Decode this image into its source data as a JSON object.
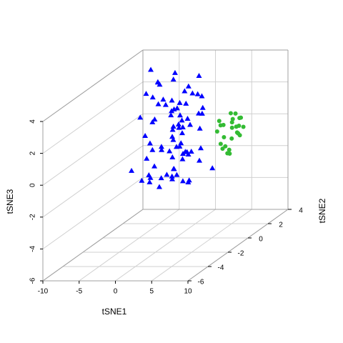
{
  "chart_data": {
    "type": "scatter3d",
    "x_label": "tSNE1",
    "y_label": "tSNE2",
    "z_label": "tSNE3",
    "xlim": [
      -10,
      10
    ],
    "ylim": [
      -6,
      4
    ],
    "zlim": [
      -6,
      4
    ],
    "xticks": [
      -10,
      -5,
      0,
      5,
      10
    ],
    "yticks": [
      -6,
      -4,
      -2,
      0,
      2,
      4
    ],
    "zticks": [
      -6,
      -4,
      -2,
      0,
      2,
      4
    ],
    "grid": true,
    "series": [
      {
        "color": "#0000ff",
        "marker": "triangle",
        "x": [
          -3.2,
          1.5,
          4.1,
          -1.8,
          0.6,
          2.9,
          -4.5,
          3.6,
          -0.4,
          1.9,
          5.2,
          -2.7,
          0.1,
          3.3,
          -1.1,
          2.4,
          4.8,
          -3.9,
          1.2,
          -0.8,
          2.7,
          5.6,
          -2.2,
          0.9,
          3.9,
          -1.5,
          1.7,
          -3.4,
          4.4,
          0.3,
          2.1,
          -0.2,
          3.1,
          -2.9,
          1.0,
          5.0,
          -1.3,
          2.6,
          -4.1,
          0.7,
          3.7,
          -0.6,
          1.4,
          4.6,
          -2.4,
          0.0,
          2.3,
          -3.6,
          3.5,
          1.1,
          -1.9,
          4.2,
          0.5,
          2.8,
          -2.6,
          1.6,
          3.0,
          -0.9,
          5.4,
          -3.0,
          0.8,
          2.0,
          -1.6,
          3.8,
          -0.3,
          1.8,
          4.0,
          -2.0,
          0.4,
          2.5,
          -4.0,
          3.4,
          -0.7,
          1.3,
          4.9,
          -2.3,
          0.2,
          2.2,
          -1.2,
          3.2
        ],
        "y": [
          -1.2,
          0.5,
          -2.8,
          1.1,
          -0.3,
          -3.5,
          0.8,
          -1.9,
          1.6,
          -0.7,
          -2.4,
          0.2,
          -3.1,
          1.3,
          -1.5,
          0.9,
          -3.8,
          -0.1,
          1.8,
          -2.0,
          0.4,
          -2.9,
          1.0,
          -1.1,
          -0.6,
          -3.3,
          1.5,
          -0.9,
          -2.2,
          0.7,
          -1.7,
          1.2,
          -2.6,
          0.0,
          -3.6,
          -1.3,
          0.6,
          -2.1,
          1.4,
          -0.4,
          -3.0,
          0.3,
          -1.4,
          -0.8,
          1.7,
          -2.5,
          -0.2,
          0.9,
          -3.4,
          -1.0,
          1.1,
          -2.3,
          -0.5,
          -1.6,
          0.5,
          -3.7,
          -0.9,
          1.3,
          -2.7,
          0.1,
          -1.8,
          -0.7,
          1.9,
          -2.4,
          -1.2,
          0.4,
          -3.2,
          -0.3,
          1.0,
          -1.5,
          0.6,
          -2.0,
          -1.1,
          1.5,
          -3.0,
          -0.6,
          -2.8,
          0.8,
          -0.1,
          -1.9
        ],
        "z": [
          2.1,
          -0.8,
          3.4,
          0.5,
          -1.9,
          1.3,
          4.2,
          -0.2,
          2.8,
          0.9,
          -1.3,
          3.7,
          1.8,
          -2.2,
          0.2,
          2.5,
          -0.6,
          3.1,
          1.0,
          -1.6,
          4.0,
          0.7,
          -1.0,
          2.2,
          3.3,
          -0.3,
          1.5,
          -2.0,
          0.4,
          2.9,
          -0.9,
          1.9,
          3.8,
          -1.5,
          0.6,
          2.4,
          -2.4,
          1.1,
          3.0,
          -0.1,
          1.7,
          -1.8,
          2.6,
          0.0,
          3.6,
          -1.1,
          1.2,
          2.0,
          -0.5,
          4.4,
          0.3,
          -1.4,
          2.3,
          3.2,
          -0.7,
          1.6,
          -2.1,
          0.8,
          2.7,
          1.4,
          3.5,
          -0.4,
          0.1,
          2.0,
          -1.7,
          2.9,
          0.5,
          3.9,
          -1.2,
          1.8,
          1.0,
          2.6,
          -2.3,
          0.2,
          1.3,
          3.1,
          -0.8,
          -1.5,
          2.4,
          0.6
        ]
      },
      {
        "color": "#33bb33",
        "marker": "circle",
        "x": [
          5.2,
          6.1,
          6.8,
          5.6,
          7.2,
          6.4,
          5.0,
          6.9,
          5.9,
          7.5,
          6.3,
          5.4,
          6.6,
          7.0,
          5.8,
          6.2,
          7.3,
          5.1,
          6.5,
          5.7,
          6.0,
          7.1,
          5.5,
          6.7,
          6.3
        ],
        "y": [
          0.4,
          1.2,
          0.8,
          1.6,
          0.2,
          1.9,
          0.9,
          1.4,
          0.1,
          1.0,
          1.7,
          0.6,
          1.3,
          0.3,
          1.8,
          0.7,
          1.5,
          1.1,
          0.0,
          1.4,
          0.5,
          1.2,
          1.0,
          0.8,
          1.6
        ],
        "z": [
          0.5,
          -0.3,
          1.1,
          0.2,
          -0.8,
          0.7,
          -0.5,
          0.9,
          1.3,
          0.0,
          -0.2,
          0.8,
          0.4,
          -0.6,
          1.0,
          -1.0,
          0.3,
          0.6,
          -0.4,
          1.2,
          0.1,
          0.5,
          -0.7,
          0.9,
          -0.1
        ]
      }
    ]
  }
}
